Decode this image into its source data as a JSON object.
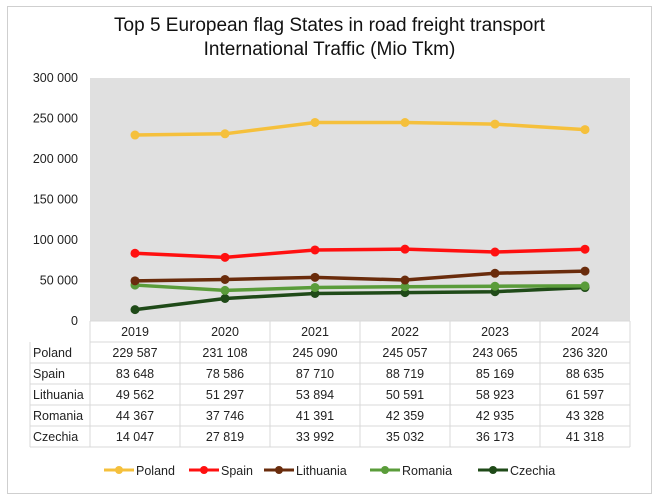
{
  "chart_data": {
    "type": "line",
    "title": "Top 5 European flag States in road freight transport International Traffic (Mio Tkm)",
    "title_lines": [
      "Top 5 European flag States in road freight transport",
      "International Traffic (Mio Tkm)"
    ],
    "categories": [
      "2019",
      "2020",
      "2021",
      "2022",
      "2023",
      "2024"
    ],
    "ylim": [
      0,
      300000
    ],
    "yticks": [
      "0",
      "50 000",
      "100 000",
      "150 000",
      "200 000",
      "250 000",
      "300 000"
    ],
    "grid": false,
    "legend": "bottom",
    "data_table": true,
    "series": [
      {
        "name": "Poland",
        "color": "#f5c03c",
        "values": [
          229587,
          231108,
          245090,
          245057,
          243065,
          236320
        ],
        "labels": [
          "229 587",
          "231 108",
          "245 090",
          "245 057",
          "243 065",
          "236 320"
        ]
      },
      {
        "name": "Spain",
        "color": "#ff1010",
        "values": [
          83648,
          78586,
          87710,
          88719,
          85169,
          88635
        ],
        "labels": [
          "83 648",
          "78 586",
          "87 710",
          "88 719",
          "85 169",
          "88 635"
        ]
      },
      {
        "name": "Lithuania",
        "color": "#6a2c0c",
        "values": [
          49562,
          51297,
          53894,
          50591,
          58923,
          61597
        ],
        "labels": [
          "49 562",
          "51 297",
          "53 894",
          "50 591",
          "58 923",
          "61 597"
        ]
      },
      {
        "name": "Romania",
        "color": "#5a9c3a",
        "values": [
          44367,
          37746,
          41391,
          42359,
          42935,
          43328
        ],
        "labels": [
          "44 367",
          "37 746",
          "41 391",
          "42 359",
          "42 935",
          "43 328"
        ]
      },
      {
        "name": "Czechia",
        "color": "#1f4a18",
        "values": [
          14047,
          27819,
          33992,
          35032,
          36173,
          41318
        ],
        "labels": [
          "14 047",
          "27 819",
          "33 992",
          "35 032",
          "36 173",
          "41 318"
        ]
      }
    ]
  }
}
